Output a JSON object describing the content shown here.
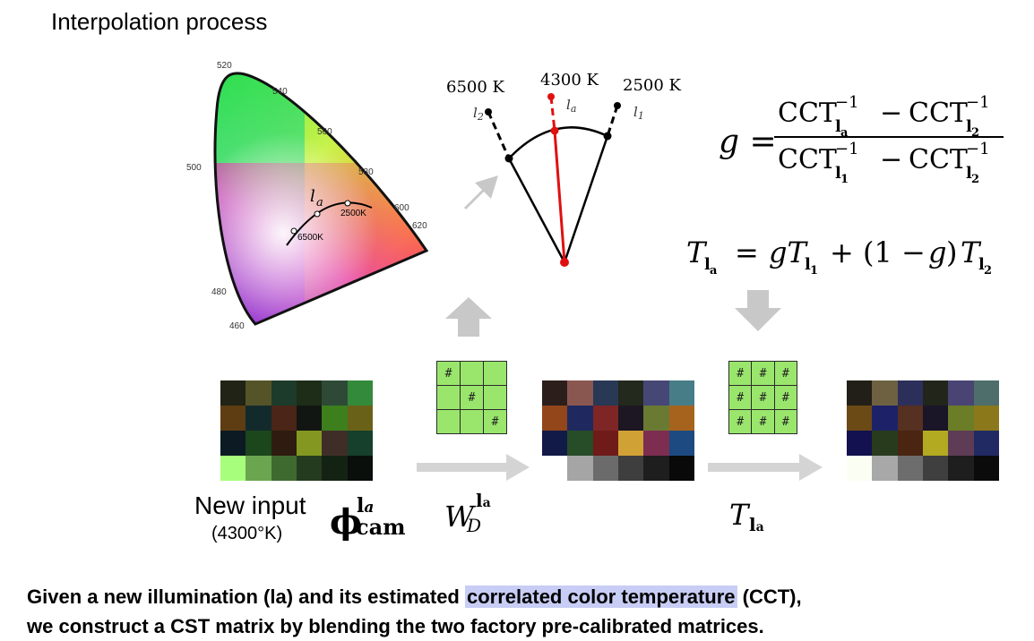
{
  "title": "Interpolation process",
  "cie": {
    "wavelength_ticks": [
      "520",
      "540",
      "560",
      "580",
      "600",
      "620",
      "500",
      "480",
      "460"
    ],
    "locus_labels": [
      "2500K",
      "6500K"
    ],
    "la_label": "l_a"
  },
  "temps": {
    "t6500": "6500  K",
    "t4300": "4300  K",
    "t2500": "2500  K",
    "l2": "l₂",
    "la": "l_a",
    "l1": "l₁"
  },
  "equations": {
    "g_lhs": "g =",
    "g_num": "CCT_{la}^{-1} − CCT_{l2}^{-1}",
    "g_den": "CCT_{l1}^{-1} − CCT_{l2}^{-1}",
    "t_eq": "T_{la} = gT_{l1} + (1 − g)T_{l2}"
  },
  "matrices": {
    "wd": [
      "#",
      "",
      "",
      "",
      "#",
      "",
      "",
      "",
      "#"
    ],
    "t": [
      "#",
      "#",
      "#",
      "#",
      "#",
      "#",
      "#",
      "#",
      "#"
    ]
  },
  "labels": {
    "new_input": "New input",
    "new_input_temp": "(4300°K)",
    "phi": "ϕ",
    "phi_sup": "l",
    "phi_sub": "cam",
    "wd": "W",
    "wd_sub": "D",
    "tla": "T"
  },
  "swatches": {
    "input": [
      "#202315",
      "#545428",
      "#1d3b2b",
      "#1e2d17",
      "#2e4a37",
      "#338a3a",
      "#5d3d11",
      "#132a2d",
      "#4b2517",
      "#111613",
      "#3c7f1c",
      "#6a6119",
      "#0c1a24",
      "#1c461b",
      "#2e1c11",
      "#849821",
      "#3f2e27",
      "#16402c",
      "#a7fe7c",
      "#6aa64f",
      "#3e6a2f",
      "#243b1f",
      "#142214",
      "#0a0f0b"
    ],
    "mid": [
      "#2c1f1b",
      "#8a5750",
      "#293855",
      "#23291c",
      "#474776",
      "#477d87",
      "#92461a",
      "#1f2960",
      "#7e2626",
      "#1d1723",
      "#6a7a33",
      "#a6631d",
      "#121a48",
      "#274c28",
      "#6e1b19",
      "#d0a135",
      "#7d2d50",
      "#1d4a80",
      "#ffffff",
      "#a5a5a5",
      "#6b6b6b",
      "#3e3e3e",
      "#1e1e1e",
      "#090909"
    ],
    "out": [
      "#221f18",
      "#6e6142",
      "#2c2f5a",
      "#22251a",
      "#494473",
      "#4d6e6a",
      "#6b4a15",
      "#1d2268",
      "#563020",
      "#1a1527",
      "#6b7d27",
      "#8b781a",
      "#13114f",
      "#293b1d",
      "#4a2511",
      "#b3aa21",
      "#5f3c56",
      "#222a63",
      "#fbfff3",
      "#a8a8a8",
      "#6d6d6d",
      "#3f3f3f",
      "#1e1e1e",
      "#0b0b0b"
    ]
  },
  "caption": {
    "line1_a": "Given a new illumination (la) and its estimated ",
    "line1_hl": "correlated color temperature",
    "line1_b": " (CCT),",
    "line2": "we  construct a CST matrix by blending the two factory pre-calibrated matrices."
  }
}
